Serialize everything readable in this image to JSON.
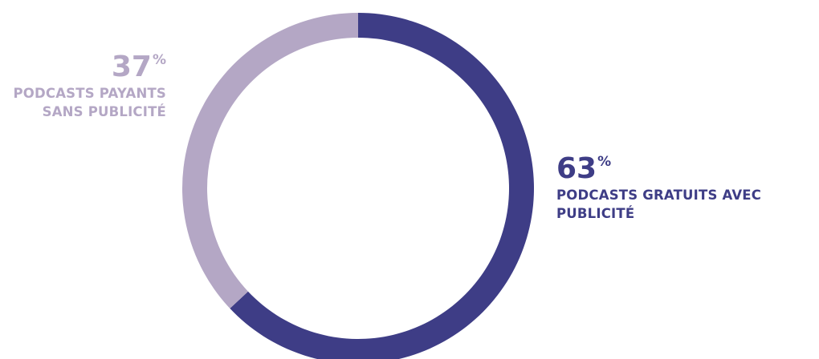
{
  "chart_data": {
    "type": "pie",
    "donut": true,
    "slices": [
      {
        "value": 63,
        "percent_label": "63",
        "percent_sign": "%",
        "label": "PODCASTS GRATUITS AVEC PUBLICITÉ",
        "color": "#3e3d86"
      },
      {
        "value": 37,
        "percent_label": "37",
        "percent_sign": "%",
        "label": "PODCASTS PAYANTS SANS PUBLICITÉ",
        "color": "#b4a7c5"
      }
    ],
    "start": "top",
    "direction": "clockwise",
    "legend": "none"
  }
}
